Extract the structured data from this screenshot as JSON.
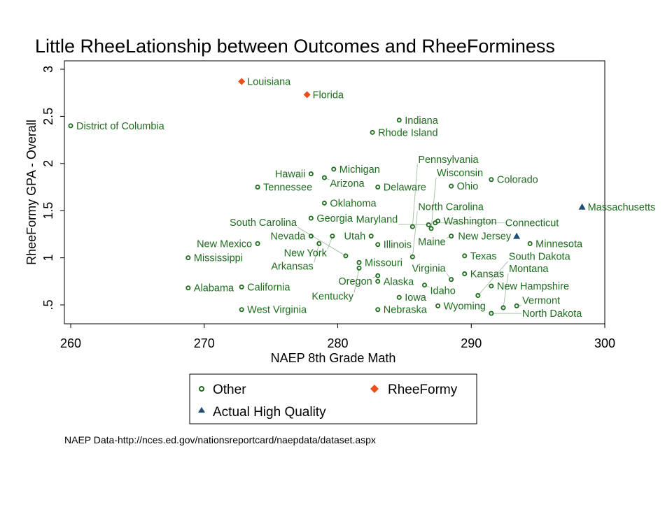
{
  "chart_data": {
    "type": "scatter",
    "title": "Little RheeLationship between Outcomes and RheeForminess",
    "xlabel": "NAEP 8th Grade Math",
    "ylabel": "RheeFormy GPA - Overall",
    "xlim": [
      260,
      300
    ],
    "ylim": [
      0.35,
      3.09
    ],
    "xticks": [
      260,
      270,
      280,
      290,
      300
    ],
    "yticks": [
      0.5,
      1,
      1.5,
      2,
      2.5,
      3
    ],
    "ytick_labels": [
      ".5",
      "1",
      "1.5",
      "2",
      "2.5",
      "3"
    ],
    "grid": false,
    "legend_position": "bottom",
    "note": "NAEP Data-http://nces.ed.gov/nationsreportcard/naepdata/dataset.aspx",
    "colors": {
      "Other": "#1e6b1e",
      "RheeFormy": "#e8501a",
      "Actual High Quality": "#1f4e79"
    },
    "series": [
      {
        "name": "Other",
        "points": [
          {
            "label": "District of Columbia",
            "x": 260,
            "y": 2.4
          },
          {
            "label": "Indiana",
            "x": 284.6,
            "y": 2.46
          },
          {
            "label": "Rhode Island",
            "x": 282.6,
            "y": 2.33
          },
          {
            "label": "Michigan",
            "x": 279.7,
            "y": 1.94
          },
          {
            "label": "Hawaii",
            "x": 278,
            "y": 1.89
          },
          {
            "label": "Arizona",
            "x": 279,
            "y": 1.85
          },
          {
            "label": "Tennessee",
            "x": 274,
            "y": 1.75
          },
          {
            "label": "Delaware",
            "x": 283,
            "y": 1.75
          },
          {
            "label": "Ohio",
            "x": 288.5,
            "y": 1.76
          },
          {
            "label": "Colorado",
            "x": 291.5,
            "y": 1.83
          },
          {
            "label": "Oklahoma",
            "x": 279,
            "y": 1.58
          },
          {
            "label": "Georgia",
            "x": 278,
            "y": 1.42
          },
          {
            "label": "Washington",
            "x": 287.5,
            "y": 1.39
          },
          {
            "label": "Connecticut",
            "x": 287.3,
            "y": 1.37
          },
          {
            "label": "Maryland",
            "x": 286.8,
            "y": 1.35
          },
          {
            "label": "Pennsylvania",
            "x": 285.6,
            "y": 1.33
          },
          {
            "label": "Wisconsin",
            "x": 287,
            "y": 1.31
          },
          {
            "label": "Maine",
            "x": 288.5,
            "y": 1.23
          },
          {
            "label": "Minnesota",
            "x": 294.4,
            "y": 1.15
          },
          {
            "label": "Nevada",
            "x": 278,
            "y": 1.23
          },
          {
            "label": "New York",
            "x": 279.6,
            "y": 1.23
          },
          {
            "label": "Utah",
            "x": 282.5,
            "y": 1.23
          },
          {
            "label": "New Mexico",
            "x": 274,
            "y": 1.15
          },
          {
            "label": "Arkansas",
            "x": 278.6,
            "y": 1.15
          },
          {
            "label": "Illinois",
            "x": 283,
            "y": 1.14
          },
          {
            "label": "Mississippi",
            "x": 268.8,
            "y": 1.0
          },
          {
            "label": "South Carolina",
            "x": 280.6,
            "y": 1.02
          },
          {
            "label": "North Carolina",
            "x": 285.6,
            "y": 1.01
          },
          {
            "label": "Texas",
            "x": 289.5,
            "y": 1.02
          },
          {
            "label": "Missouri",
            "x": 281.6,
            "y": 0.95
          },
          {
            "label": "Kentucky",
            "x": 281.6,
            "y": 0.89
          },
          {
            "label": "Kansas",
            "x": 289.5,
            "y": 0.83
          },
          {
            "label": "Oregon",
            "x": 283,
            "y": 0.81
          },
          {
            "label": "Alaska",
            "x": 283,
            "y": 0.75
          },
          {
            "label": "Virginia",
            "x": 288.5,
            "y": 0.77
          },
          {
            "label": "Idaho",
            "x": 286.5,
            "y": 0.71
          },
          {
            "label": "New Hampshire",
            "x": 291.5,
            "y": 0.7
          },
          {
            "label": "Alabama",
            "x": 268.8,
            "y": 0.68
          },
          {
            "label": "California",
            "x": 272.8,
            "y": 0.69
          },
          {
            "label": "South Dakota",
            "x": 290.5,
            "y": 0.6
          },
          {
            "label": "Iowa",
            "x": 284.6,
            "y": 0.58
          },
          {
            "label": "Wyoming",
            "x": 287.5,
            "y": 0.49
          },
          {
            "label": "Vermont",
            "x": 293.4,
            "y": 0.49
          },
          {
            "label": "Montana",
            "x": 292.4,
            "y": 0.47
          },
          {
            "label": "North Dakota",
            "x": 291.5,
            "y": 0.41
          },
          {
            "label": "West Virginia",
            "x": 272.8,
            "y": 0.45
          },
          {
            "label": "Nebraska",
            "x": 283,
            "y": 0.45
          }
        ]
      },
      {
        "name": "RheeFormy",
        "points": [
          {
            "label": "Louisiana",
            "x": 272.8,
            "y": 2.87
          },
          {
            "label": "Florida",
            "x": 277.7,
            "y": 2.73
          }
        ]
      },
      {
        "name": "Actual High Quality",
        "points": [
          {
            "label": "Massachusetts",
            "x": 298.3,
            "y": 1.54
          },
          {
            "label": "New Jersey",
            "x": 293.4,
            "y": 1.23
          }
        ]
      }
    ]
  }
}
